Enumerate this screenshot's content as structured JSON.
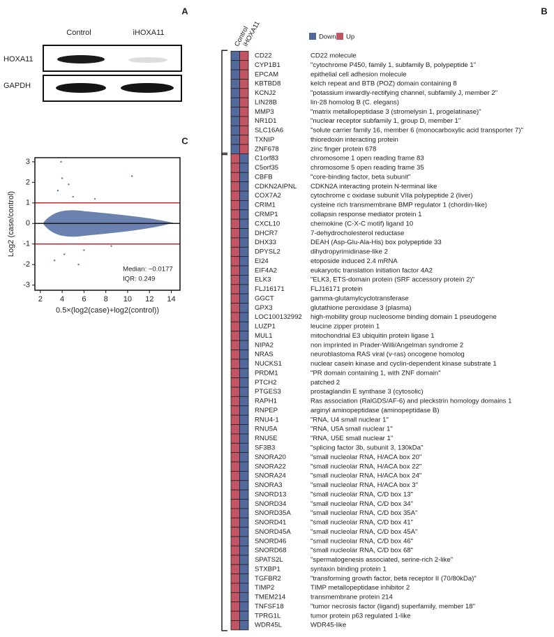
{
  "panels": {
    "a": "A",
    "b": "B",
    "c": "C"
  },
  "blot": {
    "columns": [
      "Control",
      "iHOXA11"
    ],
    "rows": [
      "HOXA11",
      "GAPDH"
    ]
  },
  "chart_data": {
    "type": "scatter",
    "color": "#5b73a6",
    "x_label": "0.5×(log2(case)+log2(control))",
    "y_label": "Log2 (case/control)",
    "xlim": [
      1.5,
      14.8
    ],
    "ylim": [
      -3.25,
      3.2
    ],
    "xticks": [
      2,
      4,
      6,
      8,
      10,
      12,
      14
    ],
    "yticks": [
      -3,
      -2,
      -1,
      0,
      1,
      2,
      3
    ],
    "hlines": [
      {
        "value": 1,
        "color": "#d0202a"
      },
      {
        "value": -1,
        "color": "#d0202a"
      },
      {
        "value": 0,
        "color": "#1a1a1a"
      }
    ],
    "annotations": [
      "Median: −0.0177",
      "IQR: 0.249"
    ]
  },
  "heatmap": {
    "columns": [
      "Control",
      "iHOXA11"
    ],
    "legend": [
      {
        "name": "Down",
        "color": "#52699b"
      },
      {
        "name": "Up",
        "color": "#c25563"
      }
    ],
    "rows": [
      {
        "gene": "CD22",
        "description": "CD22 molecule",
        "cells": [
          "Down",
          "Up"
        ]
      },
      {
        "gene": "CYP1B1",
        "description": "\"cytochrome P450, family 1, subfamily B, polypeptide 1\"",
        "cells": [
          "Down",
          "Up"
        ]
      },
      {
        "gene": "EPCAM",
        "description": "epithelial cell adhesion molecule",
        "cells": [
          "Down",
          "Up"
        ]
      },
      {
        "gene": "KBTBD8",
        "description": "kelch repeat and BTB (POZ) domain containing 8",
        "cells": [
          "Down",
          "Up"
        ]
      },
      {
        "gene": "KCNJ2",
        "description": "\"potassium inwardly-rectifying channel, subfamily J, member 2\"",
        "cells": [
          "Down",
          "Up"
        ]
      },
      {
        "gene": "LIN28B",
        "description": "lin-28 homolog B (C. elegans)",
        "cells": [
          "Down",
          "Up"
        ]
      },
      {
        "gene": "MMP3",
        "description": "\"matrix metallopeptidase 3 (stromelysin 1, progelatinase)\"",
        "cells": [
          "Down",
          "Up"
        ]
      },
      {
        "gene": "NR1D1",
        "description": "\"nuclear receptor subfamily 1, group D, member 1\"",
        "cells": [
          "Down",
          "Up"
        ]
      },
      {
        "gene": "SLC16A6",
        "description": "\"solute carrier family 16, member 6 (monocarboxylic acid transporter 7)\"",
        "cells": [
          "Down",
          "Up"
        ]
      },
      {
        "gene": "TXNIP",
        "description": "thioredoxin interacting protein",
        "cells": [
          "Down",
          "Up"
        ]
      },
      {
        "gene": "ZNF678",
        "description": "zinc finger protein 678",
        "cells": [
          "Down",
          "Up"
        ]
      },
      {
        "gene": "C1orf83",
        "description": "chromosome 1 open reading frame 83",
        "cells": [
          "Up",
          "Down"
        ]
      },
      {
        "gene": "C5orf35",
        "description": "chromosome 5 open reading frame 35",
        "cells": [
          "Up",
          "Down"
        ]
      },
      {
        "gene": "CBFB",
        "description": "\"core-binding factor, beta subunit\"",
        "cells": [
          "Up",
          "Down"
        ]
      },
      {
        "gene": "CDKN2AIPNL",
        "description": "CDKN2A interacting protein N-terminal like",
        "cells": [
          "Up",
          "Down"
        ]
      },
      {
        "gene": "COX7A2",
        "description": "cytochrome c oxidase subunit VIIa polypeptide 2 (liver)",
        "cells": [
          "Up",
          "Down"
        ]
      },
      {
        "gene": "CRIM1",
        "description": "cysteine rich transmembrane BMP regulator 1 (chordin-like)",
        "cells": [
          "Up",
          "Down"
        ]
      },
      {
        "gene": "CRMP1",
        "description": "collapsin response mediator protein 1",
        "cells": [
          "Up",
          "Down"
        ]
      },
      {
        "gene": "CXCL10",
        "description": "chemokine (C-X-C motif) ligand 10",
        "cells": [
          "Up",
          "Down"
        ]
      },
      {
        "gene": "DHCR7",
        "description": "7-dehydrocholesterol reductase",
        "cells": [
          "Up",
          "Down"
        ]
      },
      {
        "gene": "DHX33",
        "description": "DEAH (Asp-Glu-Ala-His) box polypeptide 33",
        "cells": [
          "Up",
          "Down"
        ]
      },
      {
        "gene": "DPYSL2",
        "description": "dihydropyrimidinase-like 2",
        "cells": [
          "Up",
          "Down"
        ]
      },
      {
        "gene": "EI24",
        "description": "etoposide induced 2.4 mRNA",
        "cells": [
          "Up",
          "Down"
        ]
      },
      {
        "gene": "EIF4A2",
        "description": "eukaryotic translation initiation factor 4A2",
        "cells": [
          "Up",
          "Down"
        ]
      },
      {
        "gene": "ELK3",
        "description": "\"ELK3, ETS-domain protein (SRF accessory protein 2)\"",
        "cells": [
          "Up",
          "Down"
        ]
      },
      {
        "gene": "FLJ16171",
        "description": "FLJ16171 protein",
        "cells": [
          "Up",
          "Down"
        ]
      },
      {
        "gene": "GGCT",
        "description": "gamma-glutamylcyclotransferase",
        "cells": [
          "Up",
          "Down"
        ]
      },
      {
        "gene": "GPX3",
        "description": "glutathione peroxidase 3 (plasma)",
        "cells": [
          "Up",
          "Down"
        ]
      },
      {
        "gene": "LOC100132992",
        "description": "high-mobility group nucleosome binding domain 1 pseudogene",
        "cells": [
          "Up",
          "Down"
        ]
      },
      {
        "gene": "LUZP1",
        "description": "leucine zipper protein 1",
        "cells": [
          "Up",
          "Down"
        ]
      },
      {
        "gene": "MUL1",
        "description": "mitochondrial E3 ubiquitin protein ligase 1",
        "cells": [
          "Up",
          "Down"
        ]
      },
      {
        "gene": "NIPA2",
        "description": "non imprinted in Prader-Willi/Angelman syndrome 2",
        "cells": [
          "Up",
          "Down"
        ]
      },
      {
        "gene": "NRAS",
        "description": "neuroblastoma RAS viral (v-ras) oncogene homolog",
        "cells": [
          "Up",
          "Down"
        ]
      },
      {
        "gene": "NUCKS1",
        "description": "nuclear casein kinase and cyclin-dependent kinase substrate 1",
        "cells": [
          "Up",
          "Down"
        ]
      },
      {
        "gene": "PRDM1",
        "description": "\"PR domain containing 1, with ZNF domain\"",
        "cells": [
          "Up",
          "Down"
        ]
      },
      {
        "gene": "PTCH2",
        "description": "patched 2",
        "cells": [
          "Up",
          "Down"
        ]
      },
      {
        "gene": "PTGES3",
        "description": "prostaglandin E synthase 3 (cytosolic)",
        "cells": [
          "Up",
          "Down"
        ]
      },
      {
        "gene": "RAPH1",
        "description": "Ras association (RalGDS/AF-6) and pleckstrin homology domains 1",
        "cells": [
          "Up",
          "Down"
        ]
      },
      {
        "gene": "RNPEP",
        "description": "arginyl aminopeptidase (aminopeptidase B)",
        "cells": [
          "Up",
          "Down"
        ]
      },
      {
        "gene": "RNU4-1",
        "description": "\"RNA, U4 small nuclear 1\"",
        "cells": [
          "Up",
          "Down"
        ]
      },
      {
        "gene": "RNU5A",
        "description": "\"RNA, U5A small nuclear 1\"",
        "cells": [
          "Up",
          "Down"
        ]
      },
      {
        "gene": "RNU5E",
        "description": "\"RNA, U5E small nuclear 1\"",
        "cells": [
          "Up",
          "Down"
        ]
      },
      {
        "gene": "SF3B3",
        "description": "\"splicing factor 3b, subunit 3, 130kDa\"",
        "cells": [
          "Up",
          "Down"
        ]
      },
      {
        "gene": "SNORA20",
        "description": "\"small nucleolar RNA, H/ACA box 20\"",
        "cells": [
          "Up",
          "Down"
        ]
      },
      {
        "gene": "SNORA22",
        "description": "\"small nucleolar RNA, H/ACA box 22\"",
        "cells": [
          "Up",
          "Down"
        ]
      },
      {
        "gene": "SNORA24",
        "description": "\"small nucleolar RNA, H/ACA box 24\"",
        "cells": [
          "Up",
          "Down"
        ]
      },
      {
        "gene": "SNORA3",
        "description": "\"small nucleolar RNA, H/ACA box 3\"",
        "cells": [
          "Up",
          "Down"
        ]
      },
      {
        "gene": "SNORD13",
        "description": "\"small nucleolar RNA, C/D box 13\"",
        "cells": [
          "Up",
          "Down"
        ]
      },
      {
        "gene": "SNORD34",
        "description": "\"small nucleolar RNA, C/D box 34\"",
        "cells": [
          "Up",
          "Down"
        ]
      },
      {
        "gene": "SNORD35A",
        "description": "\"small nucleolar RNA, C/D box 35A\"",
        "cells": [
          "Up",
          "Down"
        ]
      },
      {
        "gene": "SNORD41",
        "description": "\"small nucleolar RNA, C/D box 41\"",
        "cells": [
          "Up",
          "Down"
        ]
      },
      {
        "gene": "SNORD45A",
        "description": "\"small nucleolar RNA, C/D box 45A\"",
        "cells": [
          "Up",
          "Down"
        ]
      },
      {
        "gene": "SNORD46",
        "description": "\"small nucleolar RNA, C/D box 46\"",
        "cells": [
          "Up",
          "Down"
        ]
      },
      {
        "gene": "SNORD68",
        "description": "\"small nucleolar RNA, C/D box 68\"",
        "cells": [
          "Up",
          "Down"
        ]
      },
      {
        "gene": "SPATS2L",
        "description": "\"spermatogenesis associated, serine-rich 2-like\"",
        "cells": [
          "Up",
          "Down"
        ]
      },
      {
        "gene": "STXBP1",
        "description": "syntaxin binding protein 1",
        "cells": [
          "Up",
          "Down"
        ]
      },
      {
        "gene": "TGFBR2",
        "description": "\"transforming growth factor, beta receptor II (70/80kDa)\"",
        "cells": [
          "Up",
          "Down"
        ]
      },
      {
        "gene": "TIMP2",
        "description": "TIMP metallopeptidase inhibitor 2",
        "cells": [
          "Up",
          "Down"
        ]
      },
      {
        "gene": "TMEM214",
        "description": "transmembrane protein 214",
        "cells": [
          "Up",
          "Down"
        ]
      },
      {
        "gene": "TNFSF18",
        "description": "\"tumor necrosis factor (ligand) superfamily, member 18\"",
        "cells": [
          "Up",
          "Down"
        ]
      },
      {
        "gene": "TPRG1L",
        "description": "tumor protein p63 regulated 1-like",
        "cells": [
          "Up",
          "Down"
        ]
      },
      {
        "gene": "WDR45L",
        "description": "WDR45-like",
        "cells": [
          "Up",
          "Down"
        ]
      }
    ]
  }
}
